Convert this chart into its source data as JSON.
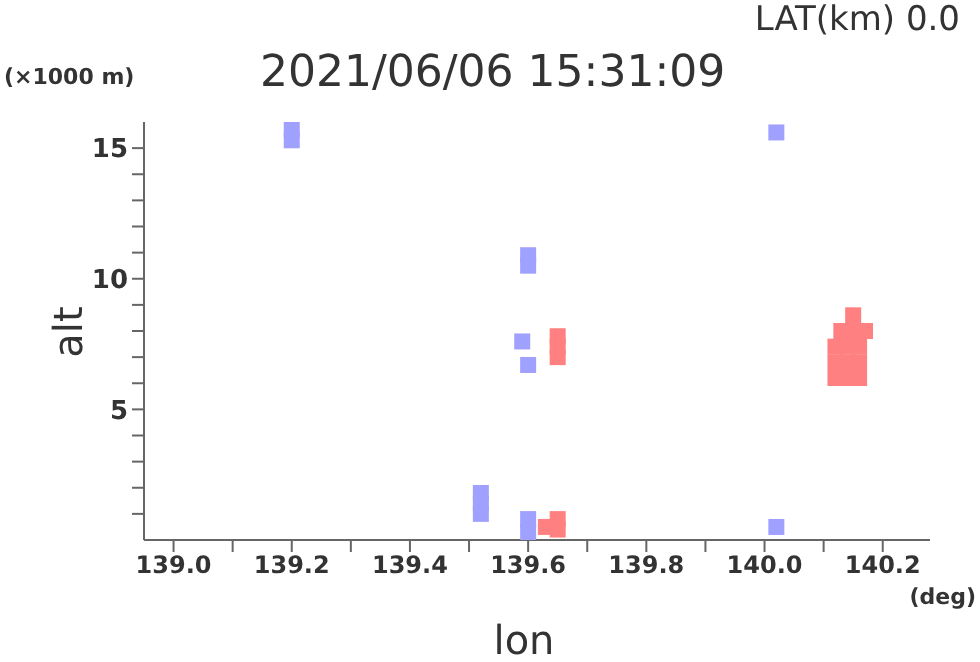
{
  "chart_data": {
    "type": "scatter",
    "title": "2021/06/06 15:31:09",
    "subtitle": "LAT(km) 0.0",
    "xlabel": "lon",
    "ylabel": "alt",
    "annotations": [
      "(×1000 m)",
      "(deg)"
    ],
    "marker": "square",
    "xlim": [
      138.95,
      140.28
    ],
    "ylim": [
      0,
      16
    ],
    "xticks": [
      {
        "value": 139,
        "label": "139.0"
      },
      {
        "value": 139.1,
        "label": null
      },
      139.2,
      {
        "value": 139.3,
        "label": null
      },
      139.4,
      {
        "value": 139.5,
        "label": null
      },
      139.6,
      {
        "value": 139.7,
        "label": null
      },
      139.8,
      {
        "value": 139.9,
        "label": null
      },
      {
        "value": 140,
        "label": "140.0"
      },
      {
        "value": 140.1,
        "label": null
      },
      140.2
    ],
    "yticks": [
      {
        "value": 1,
        "label": null
      },
      {
        "value": 2,
        "label": null
      },
      {
        "value": 3,
        "label": null
      },
      {
        "value": 4,
        "label": null
      },
      5,
      {
        "value": 6,
        "label": null
      },
      {
        "value": 7,
        "label": null
      },
      {
        "value": 8,
        "label": null
      },
      {
        "value": 9,
        "label": null
      },
      10,
      {
        "value": 11,
        "label": null
      },
      {
        "value": 12,
        "label": null
      },
      {
        "value": 13,
        "label": null
      },
      {
        "value": 14,
        "label": null
      },
      15
    ],
    "series": [
      {
        "color": "#ff8080",
        "x": [
          140.12,
          140.14,
          140.16,
          140.12,
          140.14,
          140.16,
          140.12,
          140.14,
          140.16,
          140.13,
          140.15,
          140.17,
          140.15,
          139.65,
          139.65,
          139.65,
          139.63,
          139.65,
          139.65
        ],
        "values": [
          6.2,
          6.2,
          6.2,
          6.8,
          6.8,
          6.8,
          7.4,
          7.4,
          7.4,
          8.0,
          8.0,
          8.0,
          8.6,
          7.0,
          7.4,
          7.8,
          0.5,
          0.4,
          0.8
        ]
      },
      {
        "color": "#a0a0ff",
        "x": [
          139.2,
          139.2,
          140.02,
          139.52,
          139.52,
          139.52,
          139.6,
          139.6,
          139.59,
          139.6,
          139.6,
          139.6,
          140.02
        ],
        "values": [
          15.3,
          15.7,
          15.6,
          1.0,
          1.4,
          1.8,
          10.5,
          10.9,
          7.6,
          6.7,
          0.3,
          0.8,
          0.5
        ]
      }
    ]
  }
}
